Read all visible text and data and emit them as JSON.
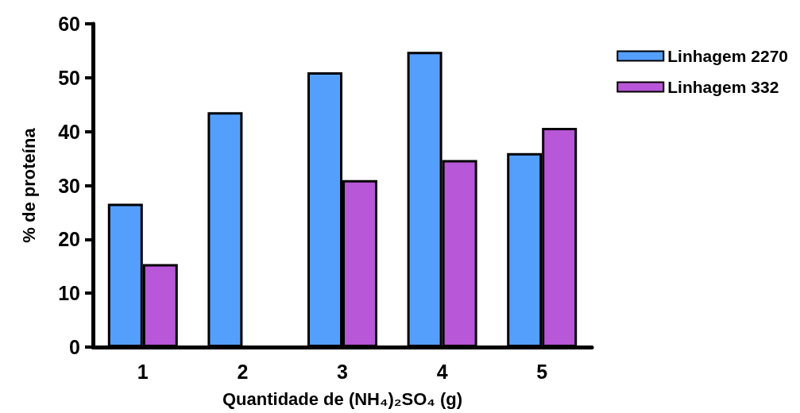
{
  "chart_data": {
    "type": "bar",
    "xlabel": "Quantidade de (NH₄)₂SO₄ (g)",
    "ylabel": "% de proteína",
    "categories": [
      "1",
      "2",
      "3",
      "4",
      "5"
    ],
    "series": [
      {
        "name": "Linhagem 2270",
        "color": "#559ffc",
        "values": [
          26.6,
          43.6,
          51.0,
          54.8,
          36.0
        ]
      },
      {
        "name": "Linhagem 332",
        "color": "#b857d8",
        "values": [
          15.4,
          null,
          31.0,
          34.7,
          40.7
        ]
      }
    ],
    "ylim": [
      0,
      60
    ],
    "yticks": [
      0,
      10,
      20,
      30,
      40,
      50,
      60
    ],
    "grid": false,
    "legend": "top right"
  }
}
